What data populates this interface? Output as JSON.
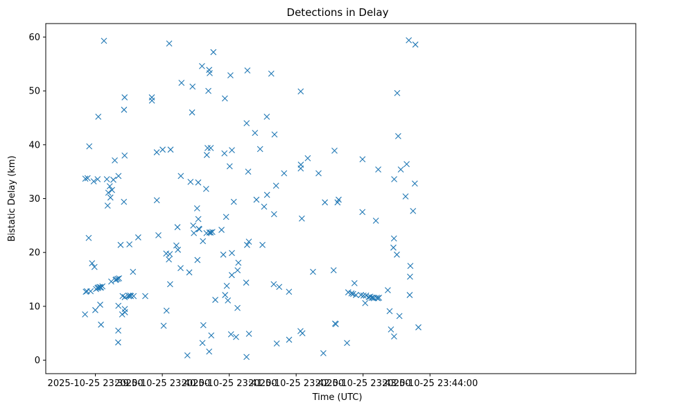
{
  "chart_data": {
    "type": "scatter",
    "title": "Detections in Delay",
    "xlabel": "Time (UTC)",
    "ylabel": "Bistatic Delay (km)",
    "x_units": "seconds since 2025-10-25 23:39:00",
    "xlim": [
      -44.5,
      484.5
    ],
    "ylim": [
      -2.5,
      62.5
    ],
    "x_ticks": [
      {
        "value": 0,
        "label": "2025-10-25 23:39:00"
      },
      {
        "value": 60,
        "label": "2025-10-25 23:40:00"
      },
      {
        "value": 120,
        "label": "2025-10-25 23:41:00"
      },
      {
        "value": 180,
        "label": "2025-10-25 23:42:00"
      },
      {
        "value": 240,
        "label": "2025-10-25 23:43:00"
      },
      {
        "value": 300,
        "label": "2025-10-25 23:44:00"
      }
    ],
    "y_ticks": [
      {
        "value": 0,
        "label": "0"
      },
      {
        "value": 10,
        "label": "10"
      },
      {
        "value": 20,
        "label": "20"
      },
      {
        "value": 30,
        "label": "30"
      },
      {
        "value": 40,
        "label": "40"
      },
      {
        "value": 50,
        "label": "50"
      },
      {
        "value": 60,
        "label": "60"
      }
    ],
    "series": [
      {
        "name": "detections",
        "marker": "x",
        "color": "#1f77b4",
        "points": [
          [
            -9.0,
            33.7
          ],
          [
            -7.0,
            33.8
          ],
          [
            -6.0,
            22.7
          ],
          [
            -5.5,
            39.7
          ],
          [
            -9.3,
            8.5
          ],
          [
            -8.6,
            12.7
          ],
          [
            -7.6,
            12.8
          ],
          [
            -4.3,
            12.8
          ],
          [
            -3.0,
            18.0
          ],
          [
            -1.5,
            33.2
          ],
          [
            -0.8,
            17.3
          ],
          [
            -0.1,
            9.3
          ],
          [
            0.6,
            13.2
          ],
          [
            1.9,
            13.4
          ],
          [
            2.6,
            13.5
          ],
          [
            3.8,
            13.6
          ],
          [
            4.4,
            13.5
          ],
          [
            5.0,
            13.5
          ],
          [
            2.0,
            33.6
          ],
          [
            2.6,
            45.2
          ],
          [
            4.3,
            10.3
          ],
          [
            5.0,
            6.6
          ],
          [
            6.3,
            13.7
          ],
          [
            7.7,
            59.3
          ],
          [
            10.3,
            33.6
          ],
          [
            11.0,
            28.7
          ],
          [
            11.6,
            31.1
          ],
          [
            12.9,
            32.3
          ],
          [
            13.5,
            30.2
          ],
          [
            14.2,
            14.6
          ],
          [
            14.9,
            31.6
          ],
          [
            16.1,
            33.5
          ],
          [
            17.4,
            37.1
          ],
          [
            18.1,
            14.9
          ],
          [
            18.8,
            15.0
          ],
          [
            20.0,
            15.1
          ],
          [
            21.2,
            15.2
          ],
          [
            22.6,
            21.4
          ],
          [
            20.7,
            34.2
          ],
          [
            20.6,
            10.1
          ],
          [
            20.5,
            5.5
          ],
          [
            20.4,
            3.3
          ],
          [
            24.0,
            8.5
          ],
          [
            24.4,
            11.9
          ],
          [
            25.6,
            29.4
          ],
          [
            25.7,
            46.5
          ],
          [
            26.2,
            48.8
          ],
          [
            26.2,
            38.0
          ],
          [
            26.3,
            11.7
          ],
          [
            26.4,
            9.5
          ],
          [
            26.5,
            8.9
          ],
          [
            29.6,
            12.0
          ],
          [
            30.5,
            21.5
          ],
          [
            30.1,
            11.9
          ],
          [
            31.2,
            12.0
          ],
          [
            31.8,
            11.9
          ],
          [
            33.7,
            16.4
          ],
          [
            34.3,
            11.9
          ],
          [
            38.4,
            22.8
          ],
          [
            44.7,
            11.9
          ],
          [
            50.6,
            48.8
          ],
          [
            50.7,
            48.2
          ],
          [
            55.0,
            38.6
          ],
          [
            55.1,
            29.7
          ],
          [
            56.5,
            23.2
          ],
          [
            60.3,
            39.1
          ],
          [
            61.2,
            6.4
          ],
          [
            63.5,
            19.8
          ],
          [
            63.8,
            9.2
          ],
          [
            65.9,
            18.7
          ],
          [
            66.2,
            58.8
          ],
          [
            66.7,
            19.7
          ],
          [
            67.0,
            14.1
          ],
          [
            67.4,
            39.1
          ],
          [
            72.6,
            21.3
          ],
          [
            73.6,
            24.7
          ],
          [
            74.0,
            20.5
          ],
          [
            76.4,
            17.1
          ],
          [
            76.6,
            34.2
          ],
          [
            77.2,
            51.5
          ],
          [
            82.5,
            0.9
          ],
          [
            84.2,
            16.3
          ],
          [
            85.3,
            33.1
          ],
          [
            86.7,
            46.0
          ],
          [
            87.1,
            50.8
          ],
          [
            87.7,
            25.0
          ],
          [
            88.3,
            23.6
          ],
          [
            91.2,
            28.2
          ],
          [
            91.5,
            18.6
          ],
          [
            92.2,
            33.0
          ],
          [
            92.3,
            26.2
          ],
          [
            92.7,
            24.4
          ],
          [
            93.2,
            24.3
          ],
          [
            95.6,
            54.6
          ],
          [
            96.4,
            22.1
          ],
          [
            96.0,
            3.2
          ],
          [
            96.8,
            6.5
          ],
          [
            99.3,
            31.8
          ],
          [
            99.6,
            23.6
          ],
          [
            99.9,
            38.1
          ],
          [
            100.6,
            39.4
          ],
          [
            101.3,
            50.0
          ],
          [
            102.0,
            53.9
          ],
          [
            102.5,
            53.3
          ],
          [
            103.4,
            39.4
          ],
          [
            102.3,
            23.7
          ],
          [
            103.4,
            23.7
          ],
          [
            104.9,
            23.8
          ],
          [
            102.0,
            1.6
          ],
          [
            103.9,
            4.6
          ],
          [
            105.8,
            57.2
          ],
          [
            107.5,
            11.2
          ],
          [
            113.1,
            24.2
          ],
          [
            114.7,
            19.6
          ],
          [
            115.7,
            38.4
          ],
          [
            116.1,
            48.6
          ],
          [
            116.3,
            12.1
          ],
          [
            117.2,
            26.6
          ],
          [
            117.8,
            13.8
          ],
          [
            118.8,
            11.1
          ],
          [
            120.4,
            36.0
          ],
          [
            121.1,
            52.9
          ],
          [
            121.6,
            4.8
          ],
          [
            122.4,
            39.0
          ],
          [
            122.4,
            19.9
          ],
          [
            122.3,
            15.8
          ],
          [
            124.1,
            29.4
          ],
          [
            126.1,
            4.3
          ],
          [
            127.5,
            16.7
          ],
          [
            127.4,
            9.7
          ],
          [
            128.2,
            18.1
          ],
          [
            135.2,
            14.4
          ],
          [
            135.6,
            44.0
          ],
          [
            136.3,
            53.8
          ],
          [
            136.0,
            21.4
          ],
          [
            137.0,
            35.0
          ],
          [
            137.6,
            22.0
          ],
          [
            137.7,
            4.9
          ],
          [
            143.1,
            42.2
          ],
          [
            144.4,
            29.8
          ],
          [
            135.5,
            0.6
          ],
          [
            147.7,
            39.2
          ],
          [
            149.8,
            21.4
          ],
          [
            151.3,
            28.5
          ],
          [
            153.9,
            30.7
          ],
          [
            153.7,
            45.2
          ],
          [
            157.7,
            53.2
          ],
          [
            160.2,
            27.1
          ],
          [
            159.9,
            14.1
          ],
          [
            160.6,
            41.9
          ],
          [
            162.0,
            32.4
          ],
          [
            162.6,
            3.1
          ],
          [
            164.8,
            13.6
          ],
          [
            169.2,
            34.7
          ],
          [
            173.6,
            12.7
          ],
          [
            173.7,
            3.8
          ],
          [
            183.9,
            5.4
          ],
          [
            184.1,
            35.6
          ],
          [
            184.2,
            36.3
          ],
          [
            184.1,
            49.9
          ],
          [
            185.1,
            26.3
          ],
          [
            185.6,
            5.0
          ],
          [
            190.4,
            37.5
          ],
          [
            195.1,
            16.4
          ],
          [
            200.1,
            34.7
          ],
          [
            205.8,
            29.3
          ],
          [
            204.4,
            1.3
          ],
          [
            213.6,
            16.7
          ],
          [
            214.4,
            38.9
          ],
          [
            214.9,
            6.8
          ],
          [
            215.6,
            6.7
          ],
          [
            217.1,
            29.3
          ],
          [
            218.1,
            29.8
          ],
          [
            225.6,
            3.2
          ],
          [
            226.7,
            12.6
          ],
          [
            229.6,
            12.4
          ],
          [
            231.1,
            12.3
          ],
          [
            232.3,
            14.3
          ],
          [
            233.6,
            12.1
          ],
          [
            238.1,
            12.1
          ],
          [
            239.4,
            27.5
          ],
          [
            239.5,
            37.3
          ],
          [
            242.8,
            12.0
          ],
          [
            240.4,
            12.0
          ],
          [
            241.9,
            10.6
          ],
          [
            245.1,
            11.7
          ],
          [
            246.5,
            11.8
          ],
          [
            247.6,
            11.6
          ],
          [
            248.7,
            11.6
          ],
          [
            249.8,
            11.5
          ],
          [
            252.3,
            11.6
          ],
          [
            253.3,
            11.5
          ],
          [
            254.3,
            11.6
          ],
          [
            251.5,
            25.9
          ],
          [
            253.6,
            35.4
          ],
          [
            262.2,
            13.0
          ],
          [
            263.8,
            9.1
          ],
          [
            265.0,
            5.7
          ],
          [
            267.2,
            20.9
          ],
          [
            267.7,
            22.6
          ],
          [
            267.8,
            4.4
          ],
          [
            267.9,
            33.6
          ],
          [
            270.3,
            19.6
          ],
          [
            270.6,
            49.6
          ],
          [
            271.5,
            41.6
          ],
          [
            272.6,
            8.2
          ],
          [
            273.8,
            35.4
          ],
          [
            278.1,
            30.4
          ],
          [
            279.1,
            36.4
          ],
          [
            281.0,
            59.4
          ],
          [
            281.8,
            12.1
          ],
          [
            282.1,
            15.5
          ],
          [
            282.4,
            17.5
          ],
          [
            284.8,
            27.7
          ],
          [
            286.4,
            32.8
          ],
          [
            286.9,
            58.6
          ],
          [
            289.6,
            6.1
          ]
        ]
      }
    ]
  }
}
